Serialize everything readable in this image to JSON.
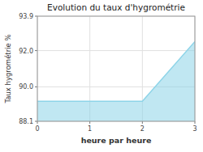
{
  "chart_data": {
    "type": "area",
    "title": "Evolution du taux d'hygrométrie",
    "xlabel": "heure par heure",
    "ylabel": "Taux hygrométrie %",
    "x": [
      0,
      2,
      3
    ],
    "values": [
      89.2,
      89.2,
      92.5
    ],
    "color": "#8dd4e8",
    "xlim": [
      0,
      3
    ],
    "ylim": [
      88.1,
      93.9
    ],
    "xticks": [
      0,
      1,
      2,
      3
    ],
    "yticks": [
      88.1,
      {
        "value": 90.0,
        "label": "90.0"
      },
      {
        "value": 92.0,
        "label": "92.0"
      },
      93.9
    ],
    "grid": true
  }
}
